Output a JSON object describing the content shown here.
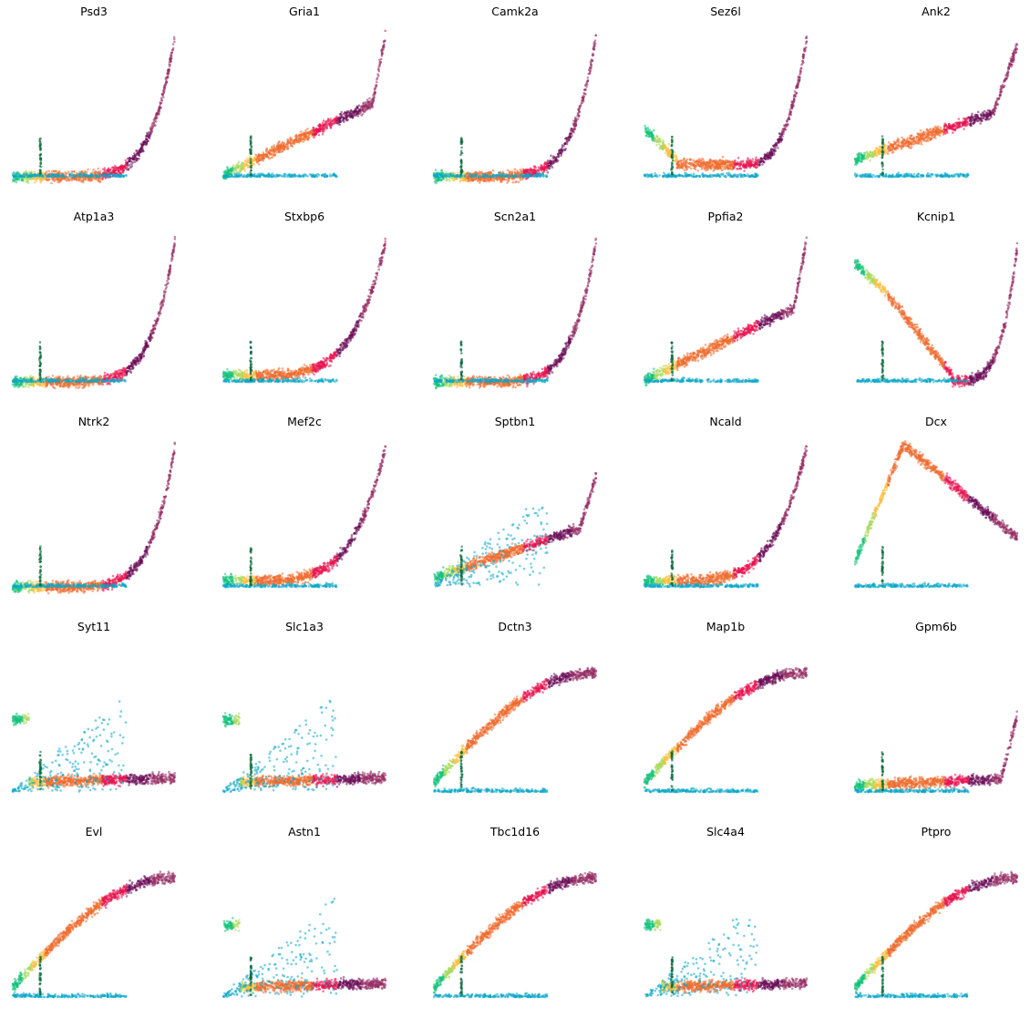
{
  "figure": {
    "layout": "5x5 grid of small scatter panels, axes hidden",
    "axes_visible": false,
    "grid": false,
    "legend": "none"
  },
  "palette": {
    "teal-green": "#13c27a",
    "light-green": "#a8d85a",
    "dark-green": "#0c6b3e",
    "yellow": "#fcc03f",
    "cyan": "#0aa8c9",
    "orange": "#ef6b2e",
    "crimson": "#e8134e",
    "purple": "#6b0d57",
    "plum": "#962d64"
  },
  "chart_data": [
    {
      "type": "scatter",
      "title": "Psd3",
      "profile": "late-spike",
      "ylim": [
        0,
        1
      ]
    },
    {
      "type": "scatter",
      "title": "Gria1",
      "profile": "gradual-orange",
      "ylim": [
        0,
        1
      ]
    },
    {
      "type": "scatter",
      "title": "Camk2a",
      "profile": "late-spike",
      "ylim": [
        0,
        1
      ]
    },
    {
      "type": "scatter",
      "title": "Sez6l",
      "profile": "u-shape",
      "ylim": [
        0,
        1
      ]
    },
    {
      "type": "scatter",
      "title": "Ank2",
      "profile": "gradual-rise",
      "ylim": [
        0,
        1
      ]
    },
    {
      "type": "scatter",
      "title": "Atp1a3",
      "profile": "late-spike",
      "ylim": [
        0,
        1
      ]
    },
    {
      "type": "scatter",
      "title": "Stxbp6",
      "profile": "flat-then-orange",
      "ylim": [
        0,
        1
      ]
    },
    {
      "type": "scatter",
      "title": "Scn2a1",
      "profile": "late-spike",
      "ylim": [
        0,
        1
      ]
    },
    {
      "type": "scatter",
      "title": "Ppfia2",
      "profile": "gradual-orange",
      "ylim": [
        0,
        1
      ]
    },
    {
      "type": "scatter",
      "title": "Kcnip1",
      "profile": "early-green-cyan-decline",
      "ylim": [
        0,
        1
      ]
    },
    {
      "type": "scatter",
      "title": "Ntrk2",
      "profile": "late-spike",
      "ylim": [
        0,
        1
      ]
    },
    {
      "type": "scatter",
      "title": "Mef2c",
      "profile": "flat-then-orange",
      "ylim": [
        0,
        1
      ]
    },
    {
      "type": "scatter",
      "title": "Sptbn1",
      "profile": "cyan-rise",
      "ylim": [
        0,
        1
      ]
    },
    {
      "type": "scatter",
      "title": "Ncald",
      "profile": "flat-then-orange",
      "ylim": [
        0,
        1
      ]
    },
    {
      "type": "scatter",
      "title": "Dcx",
      "profile": "early-peak-decline",
      "ylim": [
        0,
        1
      ]
    },
    {
      "type": "scatter",
      "title": "Syt11",
      "profile": "cyan-hump",
      "ylim": [
        0,
        1
      ]
    },
    {
      "type": "scatter",
      "title": "Slc1a3",
      "profile": "cyan-hump",
      "ylim": [
        0,
        1
      ]
    },
    {
      "type": "scatter",
      "title": "Dctn3",
      "profile": "broad-rise",
      "ylim": [
        0,
        1
      ]
    },
    {
      "type": "scatter",
      "title": "Map1b",
      "profile": "broad-rise",
      "ylim": [
        0,
        1
      ]
    },
    {
      "type": "scatter",
      "title": "Gpm6b",
      "profile": "cyan-rise-late",
      "ylim": [
        0,
        1
      ]
    },
    {
      "type": "scatter",
      "title": "Evl",
      "profile": "broad-rise",
      "ylim": [
        0,
        1
      ]
    },
    {
      "type": "scatter",
      "title": "Astn1",
      "profile": "cyan-hump",
      "ylim": [
        0,
        1
      ]
    },
    {
      "type": "scatter",
      "title": "Tbc1d16",
      "profile": "broad-rise",
      "ylim": [
        0,
        1
      ]
    },
    {
      "type": "scatter",
      "title": "Slc4a4",
      "profile": "cyan-hump",
      "ylim": [
        0,
        1
      ]
    },
    {
      "type": "scatter",
      "title": "Ptpro",
      "profile": "broad-rise",
      "ylim": [
        0,
        1
      ]
    }
  ]
}
